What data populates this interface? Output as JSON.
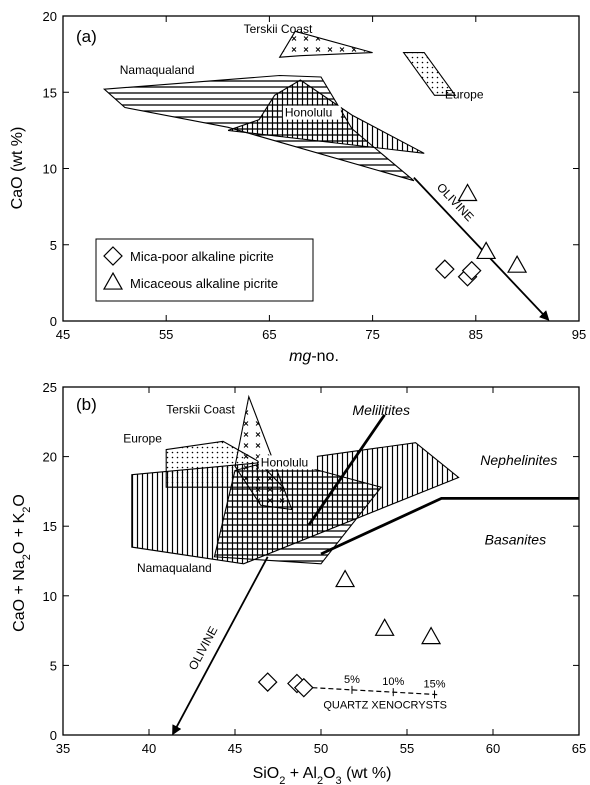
{
  "chart_data": [
    {
      "panel": "(a)",
      "type": "scatter",
      "xlabel_italic": "mg",
      "xlabel_rest": "-no.",
      "ylabel": "CaO (wt %)",
      "xlim": [
        45,
        95
      ],
      "ylim": [
        0,
        20
      ],
      "xticks": [
        45,
        55,
        65,
        75,
        85,
        95
      ],
      "yticks": [
        0,
        5,
        10,
        15,
        20
      ],
      "legend": {
        "position": "lower-left",
        "entries": [
          {
            "marker": "diamond",
            "label": "Mica-poor alkaline picrite"
          },
          {
            "marker": "triangle",
            "label": "Micaceous alkaline picrite"
          }
        ]
      },
      "series": [
        {
          "marker": "diamond",
          "points": [
            [
              82,
              3.4
            ],
            [
              84.2,
              2.9
            ],
            [
              84.6,
              3.3
            ]
          ]
        },
        {
          "marker": "triangle",
          "points": [
            [
              84.2,
              8.3
            ],
            [
              86,
              4.5
            ],
            [
              89,
              3.6
            ]
          ]
        }
      ],
      "fields": [
        {
          "label": "Terskii Coast",
          "pattern": "cross",
          "polygon": [
            [
              66,
              17.3
            ],
            [
              67.5,
              19
            ],
            [
              75,
              17.6
            ],
            [
              68,
              17.4
            ]
          ],
          "label_at": [
            62.5,
            18.9
          ]
        },
        {
          "label": "Europe",
          "pattern": "dots",
          "polygon": [
            [
              78,
              17.6
            ],
            [
              80,
              17.6
            ],
            [
              83,
              14.8
            ],
            [
              81,
              14.8
            ]
          ],
          "label_at": [
            82,
            14.6
          ]
        },
        {
          "label": "Namaqualand",
          "pattern": "hlines",
          "polygon": [
            [
              49,
              15.2
            ],
            [
              66,
              16.1
            ],
            [
              70,
              16.0
            ],
            [
              73,
              12.6
            ],
            [
              79,
              9.2
            ],
            [
              61,
              12.7
            ],
            [
              51,
              14.0
            ]
          ],
          "label_at": [
            50.5,
            16.2
          ]
        },
        {
          "label": "Honolulu",
          "pattern": "vlines",
          "polygon": [
            [
              61,
              12.5
            ],
            [
              64,
              13.2
            ],
            [
              65.5,
              14.8
            ],
            [
              68,
              15.8
            ],
            [
              73,
              13.5
            ],
            [
              80,
              11.0
            ]
          ],
          "label_at": [
            66.5,
            13.4
          ]
        }
      ],
      "olivine_vector": {
        "label": "OLIVINE",
        "from": [
          79,
          9.4
        ],
        "to": [
          92,
          0.1
        ]
      }
    },
    {
      "panel": "(b)",
      "type": "scatter",
      "xlabel": "SiO2 + Al2O3 (wt %)",
      "ylabel": "CaO + Na2O + K2O",
      "xlim": [
        35,
        65
      ],
      "ylim": [
        0,
        25
      ],
      "xticks": [
        35,
        40,
        45,
        50,
        55,
        60,
        65
      ],
      "yticks": [
        0,
        5,
        10,
        15,
        20,
        25
      ],
      "series": [
        {
          "marker": "diamond",
          "points": [
            [
              46.9,
              3.8
            ],
            [
              48.6,
              3.7
            ],
            [
              49,
              3.4
            ]
          ]
        },
        {
          "marker": "triangle",
          "points": [
            [
              51.4,
              11.1
            ],
            [
              53.7,
              7.6
            ],
            [
              56.4,
              7.0
            ]
          ]
        }
      ],
      "fields": [
        {
          "label": "Terskii Coast",
          "pattern": "cross",
          "polygon": [
            [
              45,
              19.3
            ],
            [
              45.8,
              24.3
            ],
            [
              48.3,
              16.2
            ],
            [
              46.5,
              16.5
            ]
          ],
          "label_at": [
            41,
            23.1
          ]
        },
        {
          "label": "Europe",
          "pattern": "dots",
          "polygon": [
            [
              41,
              20.5
            ],
            [
              44.3,
              21.1
            ],
            [
              46.3,
              19.7
            ],
            [
              47.8,
              17.8
            ],
            [
              41,
              17.8
            ]
          ],
          "label_at": [
            38.5,
            21.0
          ]
        },
        {
          "label": "Namaqualand",
          "pattern": "vlines",
          "polygon": [
            [
              39,
              18.7
            ],
            [
              48.5,
              19.8
            ],
            [
              55.5,
              21.0
            ],
            [
              58,
              18.5
            ],
            [
              45.5,
              12.3
            ],
            [
              39,
              13.5
            ]
          ],
          "label_at": [
            39.3,
            11.7
          ]
        },
        {
          "label": "Honolulu",
          "pattern": "hlines",
          "polygon": [
            [
              45,
              19.0
            ],
            [
              47.5,
              19.8
            ],
            [
              53.5,
              17.8
            ],
            [
              50,
              12.3
            ],
            [
              43.8,
              12.8
            ]
          ],
          "label_at": [
            46.5,
            19.3
          ]
        }
      ],
      "region_labels": [
        {
          "label": "Melilitites",
          "at": [
            53.5,
            23.0
          ]
        },
        {
          "label": "Nephelinites",
          "at": [
            61.5,
            19.4
          ]
        },
        {
          "label": "Basanites",
          "at": [
            61.3,
            13.7
          ]
        }
      ],
      "boundaries": [
        {
          "points": [
            [
              49.3,
              15.1
            ],
            [
              53.7,
              23.0
            ]
          ]
        },
        {
          "points": [
            [
              50,
              13.0
            ],
            [
              57,
              17.0
            ],
            [
              65,
              17.0
            ]
          ]
        }
      ],
      "olivine_vector": {
        "label": "OLIVINE",
        "from": [
          46.9,
          12.8
        ],
        "to": [
          41.4,
          0.1
        ]
      },
      "xenocryst_trend": {
        "label": "QUARTZ XENOCRYSTS",
        "line": [
          [
            49.5,
            3.4
          ],
          [
            56.8,
            2.9
          ]
        ],
        "ticks": [
          {
            "label": "5%",
            "x": 51.8
          },
          {
            "label": "10%",
            "x": 54.2
          },
          {
            "label": "15%",
            "x": 56.6
          }
        ]
      }
    }
  ]
}
